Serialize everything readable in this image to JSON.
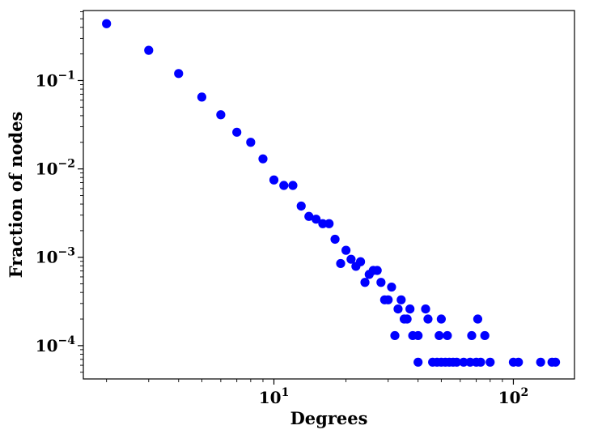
{
  "chart_data": {
    "type": "scatter",
    "title": "",
    "xlabel": "Degrees",
    "ylabel": "Fraction of nodes",
    "xscale": "log",
    "yscale": "log",
    "xlim": [
      1.6,
      180
    ],
    "ylim": [
      4.2e-05,
      0.62
    ],
    "grid": false,
    "legend": "none",
    "marker_color": "#0000ff",
    "x_ticks": [
      {
        "value": 10,
        "base": "10",
        "exp": "1"
      },
      {
        "value": 100,
        "base": "10",
        "exp": "2"
      }
    ],
    "y_ticks": [
      {
        "value": 0.1,
        "base": "10",
        "exp": "−1"
      },
      {
        "value": 0.01,
        "base": "10",
        "exp": "−2"
      },
      {
        "value": 0.001,
        "base": "10",
        "exp": "−3"
      },
      {
        "value": 0.0001,
        "base": "10",
        "exp": "−4"
      }
    ],
    "points": [
      {
        "x": 2,
        "y": 0.44
      },
      {
        "x": 3,
        "y": 0.22
      },
      {
        "x": 4,
        "y": 0.12
      },
      {
        "x": 5,
        "y": 0.065
      },
      {
        "x": 6,
        "y": 0.041
      },
      {
        "x": 7,
        "y": 0.026
      },
      {
        "x": 8,
        "y": 0.02
      },
      {
        "x": 9,
        "y": 0.013
      },
      {
        "x": 10,
        "y": 0.0075
      },
      {
        "x": 11,
        "y": 0.0065
      },
      {
        "x": 12,
        "y": 0.0065
      },
      {
        "x": 13,
        "y": 0.0038
      },
      {
        "x": 14,
        "y": 0.0029
      },
      {
        "x": 15,
        "y": 0.0027
      },
      {
        "x": 16,
        "y": 0.0024
      },
      {
        "x": 17,
        "y": 0.0024
      },
      {
        "x": 18,
        "y": 0.0016
      },
      {
        "x": 19,
        "y": 0.00085
      },
      {
        "x": 20,
        "y": 0.0012
      },
      {
        "x": 21,
        "y": 0.00095
      },
      {
        "x": 22,
        "y": 0.00079
      },
      {
        "x": 23,
        "y": 0.00089
      },
      {
        "x": 24,
        "y": 0.00052
      },
      {
        "x": 25,
        "y": 0.00064
      },
      {
        "x": 26,
        "y": 0.00071
      },
      {
        "x": 27,
        "y": 0.00071
      },
      {
        "x": 28,
        "y": 0.00052
      },
      {
        "x": 29,
        "y": 0.00033
      },
      {
        "x": 30,
        "y": 0.00033
      },
      {
        "x": 31,
        "y": 0.00046
      },
      {
        "x": 32,
        "y": 0.00013
      },
      {
        "x": 33,
        "y": 0.00026
      },
      {
        "x": 34,
        "y": 0.00033
      },
      {
        "x": 35,
        "y": 0.0002
      },
      {
        "x": 36,
        "y": 0.0002
      },
      {
        "x": 37,
        "y": 0.00026
      },
      {
        "x": 38,
        "y": 0.00013
      },
      {
        "x": 40,
        "y": 6.5e-05
      },
      {
        "x": 40,
        "y": 0.00013
      },
      {
        "x": 43,
        "y": 0.00026
      },
      {
        "x": 44,
        "y": 0.0002
      },
      {
        "x": 46,
        "y": 6.5e-05
      },
      {
        "x": 48,
        "y": 6.5e-05
      },
      {
        "x": 49,
        "y": 0.00013
      },
      {
        "x": 50,
        "y": 0.0002
      },
      {
        "x": 50,
        "y": 6.5e-05
      },
      {
        "x": 52,
        "y": 6.5e-05
      },
      {
        "x": 53,
        "y": 0.00013
      },
      {
        "x": 54,
        "y": 6.5e-05
      },
      {
        "x": 56,
        "y": 6.5e-05
      },
      {
        "x": 58,
        "y": 6.5e-05
      },
      {
        "x": 62,
        "y": 6.5e-05
      },
      {
        "x": 66,
        "y": 6.5e-05
      },
      {
        "x": 67,
        "y": 0.00013
      },
      {
        "x": 70,
        "y": 6.5e-05
      },
      {
        "x": 71,
        "y": 0.0002
      },
      {
        "x": 73,
        "y": 6.5e-05
      },
      {
        "x": 76,
        "y": 0.00013
      },
      {
        "x": 80,
        "y": 6.5e-05
      },
      {
        "x": 100,
        "y": 6.5e-05
      },
      {
        "x": 105,
        "y": 6.5e-05
      },
      {
        "x": 130,
        "y": 6.5e-05
      },
      {
        "x": 145,
        "y": 6.5e-05
      },
      {
        "x": 150,
        "y": 6.5e-05
      }
    ]
  }
}
